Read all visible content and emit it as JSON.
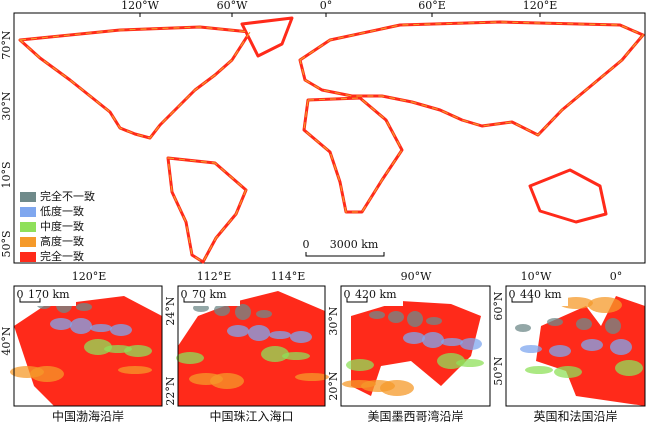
{
  "main_map": {
    "top_labels": [
      "120°W",
      "60°W",
      "0°",
      "60°E",
      "120°E"
    ],
    "left_labels": [
      "70°N",
      "30°N",
      "10°S",
      "50°S"
    ],
    "legend": [
      {
        "label": "完全不一致",
        "color": "#6f8a8a"
      },
      {
        "label": "低度一致",
        "color": "#7fa7ef"
      },
      {
        "label": "中度一致",
        "color": "#8fe05a"
      },
      {
        "label": "高度一致",
        "color": "#f59a2a"
      },
      {
        "label": "完全一致",
        "color": "#ff2a1a"
      }
    ],
    "scale_bar": {
      "start": "0",
      "end": "3000 km"
    }
  },
  "insets": [
    {
      "title": "中国渤海沿岸",
      "top_labels": [
        "120°E"
      ],
      "left_labels": [
        "40°N"
      ],
      "scale_start": "0",
      "scale_end": "170 km"
    },
    {
      "title": "中国珠江入海口",
      "top_labels": [
        "112°E",
        "114°E"
      ],
      "left_labels": [
        "24°N",
        "22°N"
      ],
      "scale_start": "0",
      "scale_end": "70 km"
    },
    {
      "title": "美国墨西哥湾沿岸",
      "top_labels": [
        "90°W"
      ],
      "left_labels": [
        "30°N",
        "20°N"
      ],
      "scale_start": "0",
      "scale_end": "420 km"
    },
    {
      "title": "英国和法国沿岸",
      "top_labels": [
        "10°W",
        "0°"
      ],
      "left_labels": [
        "60°N",
        "50°N"
      ],
      "scale_start": "0",
      "scale_end": "440 km"
    }
  ]
}
